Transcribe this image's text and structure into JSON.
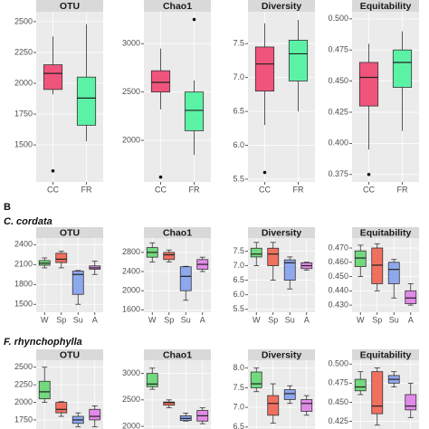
{
  "figure": {
    "panel_b": "B",
    "group_1": "C. cordata",
    "group_2": "F. rhynchophylla"
  },
  "chart_data": [
    {
      "type": "box",
      "title": "OTU",
      "categories": [
        "CC",
        "FR"
      ],
      "colors": [
        "#f0547c",
        "#5cf2a6"
      ],
      "ylim": [
        1200,
        2580
      ],
      "yticks": [
        1500,
        1750,
        2000,
        2250,
        2500
      ],
      "boxes": [
        {
          "min": 1910,
          "q1": 1950,
          "median": 2080,
          "q3": 2150,
          "max": 2380,
          "outliers": [
            1290
          ]
        },
        {
          "min": 1530,
          "q1": 1660,
          "median": 1880,
          "q3": 2050,
          "max": 2480,
          "outliers": []
        }
      ]
    },
    {
      "type": "box",
      "title": "Chao1",
      "categories": [
        "CC",
        "FR"
      ],
      "colors": [
        "#f0547c",
        "#5cf2a6"
      ],
      "ylim": [
        1570,
        3330
      ],
      "yticks": [
        2000,
        2500,
        3000
      ],
      "boxes": [
        {
          "min": 2320,
          "q1": 2500,
          "median": 2600,
          "q3": 2720,
          "max": 2950,
          "outliers": [
            1620
          ]
        },
        {
          "min": 1850,
          "q1": 2100,
          "median": 2310,
          "q3": 2500,
          "max": 2620,
          "outliers": [
            3250
          ]
        }
      ]
    },
    {
      "type": "box",
      "title": "Diversity",
      "categories": [
        "CC",
        "FR"
      ],
      "colors": [
        "#f0547c",
        "#5cf2a6"
      ],
      "ylim": [
        5.46,
        7.97
      ],
      "yticks": [
        5.5,
        {
          "value": 6,
          "label": "6.0"
        },
        6.5,
        {
          "value": 7,
          "label": "7.0"
        },
        7.5
      ],
      "boxes": [
        {
          "min": 6.3,
          "q1": 6.8,
          "median": 7.2,
          "q3": 7.45,
          "max": 7.8,
          "outliers": [
            5.6
          ]
        },
        {
          "min": 6.5,
          "q1": 6.95,
          "median": 7.35,
          "q3": 7.55,
          "max": 7.85,
          "outliers": []
        }
      ]
    },
    {
      "type": "box",
      "title": "Equitability",
      "categories": [
        "CC",
        "FR"
      ],
      "colors": [
        "#f0547c",
        "#5cf2a6"
      ],
      "ylim": [
        0.369,
        0.5057
      ],
      "yticks": [
        0.375,
        {
          "value": 0.4,
          "label": "0.400"
        },
        0.425,
        {
          "value": 0.45,
          "label": "0.450"
        },
        0.475,
        {
          "value": 0.5,
          "label": "0.500"
        }
      ],
      "boxes": [
        {
          "min": 0.395,
          "q1": 0.43,
          "median": 0.453,
          "q3": 0.465,
          "max": 0.48,
          "outliers": [
            0.375
          ]
        },
        {
          "min": 0.41,
          "q1": 0.445,
          "median": 0.465,
          "q3": 0.475,
          "max": 0.49,
          "outliers": []
        }
      ]
    },
    {
      "type": "box",
      "title": "OTU",
      "categories": [
        "W",
        "Sp",
        "Su",
        "A"
      ],
      "colors": [
        "#72d97e",
        "#f07060",
        "#8ea8ee",
        "#e28ae8"
      ],
      "ylim": [
        1380,
        2500
      ],
      "yticks": [
        1500,
        1800,
        2100,
        2400
      ],
      "boxes": [
        {
          "min": 2050,
          "q1": 2090,
          "median": 2120,
          "q3": 2160,
          "max": 2200,
          "outliers": []
        },
        {
          "min": 2050,
          "q1": 2130,
          "median": 2180,
          "q3": 2270,
          "max": 2300,
          "outliers": []
        },
        {
          "min": 1500,
          "q1": 1650,
          "median": 1950,
          "q3": 2000,
          "max": 2010,
          "outliers": []
        },
        {
          "min": 1950,
          "q1": 2030,
          "median": 2050,
          "q3": 2080,
          "max": 2150,
          "outliers": []
        }
      ]
    },
    {
      "type": "box",
      "title": "Chao1",
      "categories": [
        "W",
        "Sp",
        "Su",
        "A"
      ],
      "colors": [
        "#72d97e",
        "#f07060",
        "#8ea8ee",
        "#e28ae8"
      ],
      "ylim": [
        1550,
        3100
      ],
      "yticks": [
        1600,
        2000,
        2400,
        2800
      ],
      "boxes": [
        {
          "min": 2600,
          "q1": 2700,
          "median": 2800,
          "q3": 2900,
          "max": 3000,
          "outliers": []
        },
        {
          "min": 2600,
          "q1": 2650,
          "median": 2750,
          "q3": 2800,
          "max": 2850,
          "outliers": []
        },
        {
          "min": 1800,
          "q1": 2000,
          "median": 2300,
          "q3": 2500,
          "max": 2510,
          "outliers": []
        },
        {
          "min": 2400,
          "q1": 2450,
          "median": 2550,
          "q3": 2650,
          "max": 2700,
          "outliers": []
        }
      ]
    },
    {
      "type": "box",
      "title": "Diversity",
      "categories": [
        "W",
        "Sp",
        "Su",
        "A"
      ],
      "colors": [
        "#72d97e",
        "#f07060",
        "#8ea8ee",
        "#e28ae8"
      ],
      "ylim": [
        5.4,
        7.95
      ],
      "yticks": [
        5.5,
        {
          "value": 6,
          "label": "6.0"
        },
        6.5,
        {
          "value": 7,
          "label": "7.0"
        },
        7.5
      ],
      "boxes": [
        {
          "min": 7.0,
          "q1": 7.3,
          "median": 7.4,
          "q3": 7.6,
          "max": 7.8,
          "outliers": []
        },
        {
          "min": 6.5,
          "q1": 7.0,
          "median": 7.4,
          "q3": 7.6,
          "max": 7.8,
          "outliers": []
        },
        {
          "min": 6.2,
          "q1": 6.5,
          "median": 7.1,
          "q3": 7.2,
          "max": 7.3,
          "outliers": []
        },
        {
          "min": 6.85,
          "q1": 6.9,
          "median": 7.0,
          "q3": 7.1,
          "max": 7.12,
          "outliers": []
        }
      ]
    },
    {
      "type": "box",
      "title": "Equitability",
      "categories": [
        "W",
        "Sp",
        "Su",
        "A"
      ],
      "colors": [
        "#72d97e",
        "#f07060",
        "#8ea8ee",
        "#e28ae8"
      ],
      "ylim": [
        0.425,
        0.477
      ],
      "yticks": [
        {
          "value": 0.43,
          "label": "0.430"
        },
        {
          "value": 0.44,
          "label": "0.440"
        },
        {
          "value": 0.45,
          "label": "0.450"
        },
        {
          "value": 0.46,
          "label": "0.460"
        },
        {
          "value": 0.47,
          "label": "0.470"
        }
      ],
      "boxes": [
        {
          "min": 0.45,
          "q1": 0.457,
          "median": 0.463,
          "q3": 0.468,
          "max": 0.472,
          "outliers": []
        },
        {
          "min": 0.44,
          "q1": 0.445,
          "median": 0.458,
          "q3": 0.47,
          "max": 0.473,
          "outliers": []
        },
        {
          "min": 0.435,
          "q1": 0.445,
          "median": 0.455,
          "q3": 0.46,
          "max": 0.462,
          "outliers": []
        },
        {
          "min": 0.43,
          "q1": 0.431,
          "median": 0.435,
          "q3": 0.44,
          "max": 0.445,
          "outliers": []
        }
      ]
    },
    {
      "type": "box",
      "title": "OTU",
      "colors": [
        "#72d97e",
        "#f07060",
        "#8ea8ee",
        "#e28ae8"
      ],
      "ylim": [
        1620,
        2600
      ],
      "yticks": [
        1750,
        2000,
        2250,
        2500
      ],
      "boxes": [
        {
          "min": 2000,
          "q1": 2050,
          "median": 2150,
          "q3": 2300,
          "max": 2500,
          "outliers": []
        },
        {
          "min": 1800,
          "q1": 1850,
          "median": 1900,
          "q3": 2000,
          "max": 2010,
          "outliers": []
        },
        {
          "min": 1650,
          "q1": 1700,
          "median": 1750,
          "q3": 1800,
          "max": 1850,
          "outliers": []
        },
        {
          "min": 1650,
          "q1": 1750,
          "median": 1800,
          "q3": 1900,
          "max": 1950,
          "outliers": []
        }
      ]
    },
    {
      "type": "box",
      "title": "Chao1",
      "colors": [
        "#72d97e",
        "#f07060",
        "#8ea8ee",
        "#e28ae8"
      ],
      "ylim": [
        1950,
        3250
      ],
      "yticks": [
        2000,
        2500,
        3000
      ],
      "boxes": [
        {
          "min": 2700,
          "q1": 2750,
          "median": 2800,
          "q3": 3000,
          "max": 3100,
          "outliers": []
        },
        {
          "min": 2350,
          "q1": 2400,
          "median": 2450,
          "q3": 2460,
          "max": 2500,
          "outliers": []
        },
        {
          "min": 2100,
          "q1": 2110,
          "median": 2150,
          "q3": 2200,
          "max": 2250,
          "outliers": []
        },
        {
          "min": 2050,
          "q1": 2100,
          "median": 2200,
          "q3": 2300,
          "max": 2350,
          "outliers": []
        }
      ]
    },
    {
      "type": "box",
      "title": "Diversity",
      "colors": [
        "#72d97e",
        "#f07060",
        "#8ea8ee",
        "#e28ae8"
      ],
      "ylim": [
        6.45,
        8.2
      ],
      "yticks": [
        6.5,
        {
          "value": 7,
          "label": "7.0"
        },
        7.5,
        {
          "value": 8,
          "label": "8.0"
        }
      ],
      "boxes": [
        {
          "min": 7.4,
          "q1": 7.5,
          "median": 7.6,
          "q3": 7.9,
          "max": 8.0,
          "outliers": []
        },
        {
          "min": 6.6,
          "q1": 6.8,
          "median": 7.1,
          "q3": 7.3,
          "max": 7.6,
          "outliers": []
        },
        {
          "min": 7.1,
          "q1": 7.2,
          "median": 7.35,
          "q3": 7.45,
          "max": 7.55,
          "outliers": []
        },
        {
          "min": 6.8,
          "q1": 6.9,
          "median": 7.1,
          "q3": 7.2,
          "max": 7.3,
          "outliers": []
        }
      ]
    },
    {
      "type": "box",
      "title": "Equitability",
      "colors": [
        "#72d97e",
        "#f07060",
        "#8ea8ee",
        "#e28ae8"
      ],
      "ylim": [
        0.415,
        0.505
      ],
      "yticks": [
        0.425,
        {
          "value": 0.45,
          "label": "0.450"
        },
        0.475,
        {
          "value": 0.5,
          "label": "0.500"
        }
      ],
      "boxes": [
        {
          "min": 0.46,
          "q1": 0.465,
          "median": 0.47,
          "q3": 0.48,
          "max": 0.49,
          "outliers": []
        },
        {
          "min": 0.42,
          "q1": 0.435,
          "median": 0.445,
          "q3": 0.49,
          "max": 0.495,
          "outliers": []
        },
        {
          "min": 0.47,
          "q1": 0.475,
          "median": 0.48,
          "q3": 0.485,
          "max": 0.49,
          "outliers": []
        },
        {
          "min": 0.43,
          "q1": 0.44,
          "median": 0.445,
          "q3": 0.46,
          "max": 0.475,
          "outliers": []
        }
      ]
    }
  ]
}
